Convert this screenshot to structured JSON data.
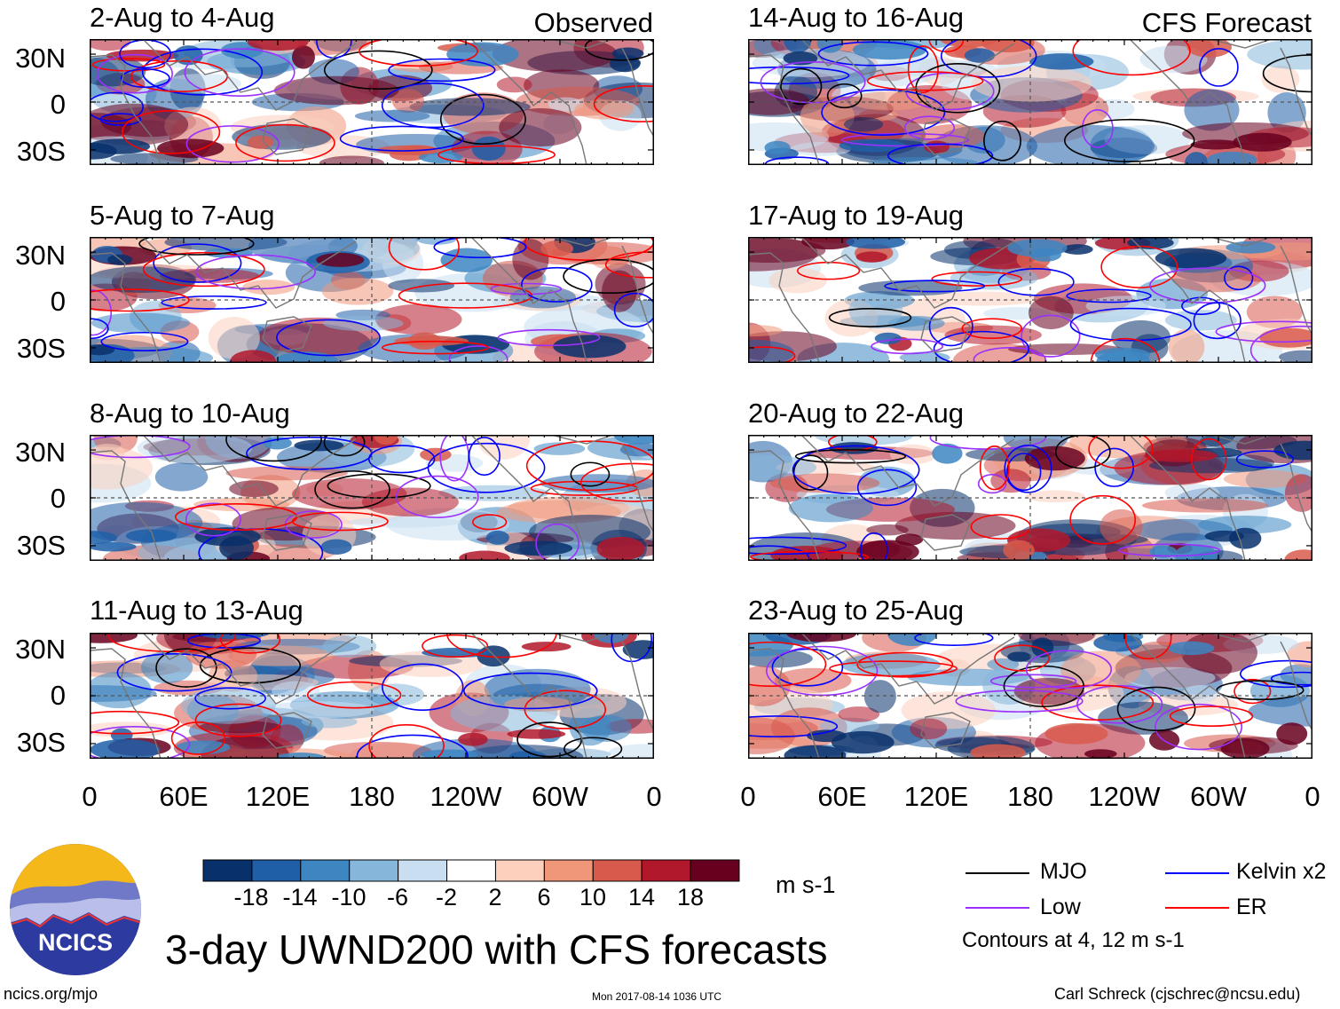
{
  "header": {
    "observed_label": "Observed",
    "forecast_label": "CFS Forecast"
  },
  "left_panels": [
    {
      "title": "2-Aug to 4-Aug"
    },
    {
      "title": "5-Aug to 7-Aug"
    },
    {
      "title": "8-Aug to 10-Aug"
    },
    {
      "title": "11-Aug to 13-Aug"
    }
  ],
  "right_panels": [
    {
      "title": "14-Aug to 16-Aug"
    },
    {
      "title": "17-Aug to 19-Aug"
    },
    {
      "title": "20-Aug to 22-Aug"
    },
    {
      "title": "23-Aug to 25-Aug"
    }
  ],
  "lat_labels": [
    "30N",
    "0",
    "30S"
  ],
  "lon_labels": [
    "0",
    "60E",
    "120E",
    "180",
    "120W",
    "60W",
    "0"
  ],
  "colorbar": {
    "ticks": [
      "-18",
      "-14",
      "-10",
      "-6",
      "-2",
      "2",
      "6",
      "10",
      "14",
      "18"
    ],
    "units": "m s-1",
    "colors": [
      "#08306b",
      "#1f5fa8",
      "#3d86c2",
      "#86b7db",
      "#c9def0",
      "#ffffff",
      "#fcd0bd",
      "#f0977a",
      "#d85a4c",
      "#b2182b",
      "#67001f"
    ]
  },
  "legend": {
    "mjo": "MJO",
    "low": "Low",
    "kelvin": "Kelvin x2",
    "er": "ER",
    "contours_note": "Contours at 4, 12 m s-1",
    "colors": {
      "mjo": "#000000",
      "low": "#9b30ff",
      "kelvin": "#0000ff",
      "er": "#ff0000"
    }
  },
  "footer": {
    "title": "3-day UWND200 with CFS forecasts",
    "url": "ncics.org/mjo",
    "timestamp": "Mon 2017-08-14 1036 UTC",
    "author": "Carl Schreck (cjschrec@ncsu.edu)",
    "logo_text": "NCICS"
  }
}
